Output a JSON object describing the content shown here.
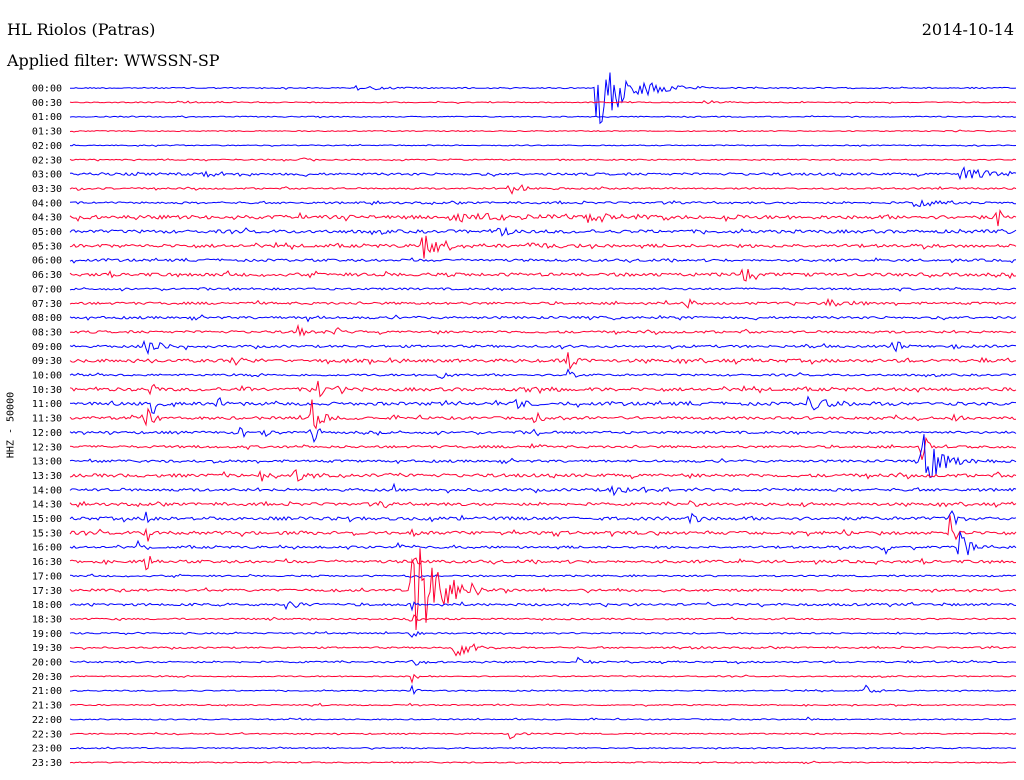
{
  "header": {
    "station": "HL Riolos (Patras)",
    "date": "2014-10-14",
    "filter": "Applied filter: WWSSN-SP"
  },
  "colors": {
    "blue": "#0000ff",
    "red": "#ff0033"
  },
  "chart_data": {
    "type": "line",
    "title": "HL Riolos (Patras)",
    "date": "2014-10-14",
    "filter": "WWSSN-SP",
    "ylabel": "HHZ - 50000",
    "row_labels": [
      "00:00",
      "00:30",
      "01:00",
      "01:30",
      "02:00",
      "02:30",
      "03:00",
      "03:30",
      "04:00",
      "04:30",
      "05:00",
      "05:30",
      "06:00",
      "06:30",
      "07:00",
      "07:30",
      "08:00",
      "08:30",
      "09:00",
      "09:30",
      "10:00",
      "10:30",
      "11:00",
      "11:30",
      "12:00",
      "12:30",
      "13:00",
      "13:30",
      "14:00",
      "14:30",
      "15:00",
      "15:30",
      "16:00",
      "16:30",
      "17:00",
      "17:30",
      "18:00",
      "18:30",
      "19:00",
      "19:30",
      "20:00",
      "20:30",
      "21:00",
      "21:30",
      "22:00",
      "22:30",
      "23:00",
      "23:30"
    ],
    "row_colors": [
      "blue",
      "red"
    ],
    "rows": [
      {
        "noise": 0.6,
        "events": [
          {
            "x": 0.3,
            "amp": 3,
            "dur": 0.03
          },
          {
            "x": 0.555,
            "amp": 45,
            "dur": 0.03
          }
        ]
      },
      {
        "noise": 0.5,
        "events": [
          {
            "x": 0.11,
            "amp": 2,
            "dur": 0.02
          },
          {
            "x": 0.67,
            "amp": 2,
            "dur": 0.02
          }
        ]
      },
      {
        "noise": 0.5,
        "events": []
      },
      {
        "noise": 0.5,
        "events": []
      },
      {
        "noise": 0.5,
        "events": []
      },
      {
        "noise": 0.6,
        "events": [
          {
            "x": 0.245,
            "amp": 2,
            "dur": 0.01
          }
        ]
      },
      {
        "noise": 1.2,
        "events": [
          {
            "x": 0.14,
            "amp": 7,
            "dur": 0.015
          },
          {
            "x": 0.94,
            "amp": 8,
            "dur": 0.04
          }
        ]
      },
      {
        "noise": 0.8,
        "events": [
          {
            "x": 0.003,
            "amp": 4,
            "dur": 0.01
          },
          {
            "x": 0.465,
            "amp": 13,
            "dur": 0.015
          }
        ]
      },
      {
        "noise": 1.0,
        "events": [
          {
            "x": 0.89,
            "amp": 6,
            "dur": 0.02
          }
        ]
      },
      {
        "noise": 1.8,
        "events": [
          {
            "x": 0.4,
            "amp": 6,
            "dur": 0.05
          },
          {
            "x": 0.545,
            "amp": 6,
            "dur": 0.03
          },
          {
            "x": 0.69,
            "amp": 6,
            "dur": 0.01
          },
          {
            "x": 0.98,
            "amp": 16,
            "dur": 0.005
          }
        ]
      },
      {
        "noise": 1.6,
        "events": [
          {
            "x": 0.45,
            "amp": 6,
            "dur": 0.015
          },
          {
            "x": 0.98,
            "amp": 7,
            "dur": 0.005
          }
        ]
      },
      {
        "noise": 1.6,
        "events": [
          {
            "x": 0.37,
            "amp": 20,
            "dur": 0.02
          },
          {
            "x": 0.48,
            "amp": 3,
            "dur": 0.03
          }
        ]
      },
      {
        "noise": 1.2,
        "events": []
      },
      {
        "noise": 1.6,
        "events": [
          {
            "x": 0.71,
            "amp": 9,
            "dur": 0.02
          }
        ]
      },
      {
        "noise": 1.0,
        "events": []
      },
      {
        "noise": 1.2,
        "events": [
          {
            "x": 0.65,
            "amp": 7,
            "dur": 0.008
          },
          {
            "x": 0.8,
            "amp": 8,
            "dur": 0.015
          }
        ]
      },
      {
        "noise": 1.2,
        "events": [
          {
            "x": 0.25,
            "amp": 5,
            "dur": 0.008
          }
        ]
      },
      {
        "noise": 1.2,
        "events": [
          {
            "x": 0.24,
            "amp": 6,
            "dur": 0.01
          },
          {
            "x": 0.28,
            "amp": 5,
            "dur": 0.01
          }
        ]
      },
      {
        "noise": 1.2,
        "events": [
          {
            "x": 0.08,
            "amp": 9,
            "dur": 0.02
          },
          {
            "x": 0.87,
            "amp": 14,
            "dur": 0.005
          },
          {
            "x": 0.935,
            "amp": 5,
            "dur": 0.01
          }
        ]
      },
      {
        "noise": 1.6,
        "events": [
          {
            "x": 0.165,
            "amp": 5,
            "dur": 0.02
          },
          {
            "x": 0.525,
            "amp": 14,
            "dur": 0.01
          }
        ]
      },
      {
        "noise": 1.0,
        "events": [
          {
            "x": 0.39,
            "amp": 6,
            "dur": 0.01
          },
          {
            "x": 0.525,
            "amp": 10,
            "dur": 0.005
          }
        ]
      },
      {
        "noise": 1.6,
        "events": [
          {
            "x": 0.085,
            "amp": 20,
            "dur": 0.005
          },
          {
            "x": 0.18,
            "amp": 6,
            "dur": 0.01
          },
          {
            "x": 0.26,
            "amp": 10,
            "dur": 0.02
          },
          {
            "x": 0.47,
            "amp": 5,
            "dur": 0.03
          }
        ]
      },
      {
        "noise": 1.6,
        "events": [
          {
            "x": 0.085,
            "amp": 30,
            "dur": 0.005
          },
          {
            "x": 0.155,
            "amp": 8,
            "dur": 0.01
          },
          {
            "x": 0.47,
            "amp": 8,
            "dur": 0.015
          },
          {
            "x": 0.78,
            "amp": 6,
            "dur": 0.04
          }
        ]
      },
      {
        "noise": 1.4,
        "events": [
          {
            "x": 0.08,
            "amp": 14,
            "dur": 0.01
          },
          {
            "x": 0.255,
            "amp": 22,
            "dur": 0.01
          },
          {
            "x": 0.49,
            "amp": 6,
            "dur": 0.015
          },
          {
            "x": 0.93,
            "amp": 5,
            "dur": 0.01
          }
        ]
      },
      {
        "noise": 1.2,
        "events": [
          {
            "x": 0.175,
            "amp": 5,
            "dur": 0.02
          },
          {
            "x": 0.205,
            "amp": 7,
            "dur": 0.005
          },
          {
            "x": 0.255,
            "amp": 18,
            "dur": 0.005
          },
          {
            "x": 0.49,
            "amp": 6,
            "dur": 0.01
          }
        ]
      },
      {
        "noise": 1.2,
        "events": [
          {
            "x": 0.485,
            "amp": 6,
            "dur": 0.01
          },
          {
            "x": 0.9,
            "amp": 22,
            "dur": 0.005
          }
        ]
      },
      {
        "noise": 1.2,
        "events": [
          {
            "x": 0.9,
            "amp": 30,
            "dur": 0.02
          }
        ]
      },
      {
        "noise": 1.6,
        "events": [
          {
            "x": 0.2,
            "amp": 14,
            "dur": 0.003
          },
          {
            "x": 0.235,
            "amp": 6,
            "dur": 0.03
          },
          {
            "x": 0.34,
            "amp": 10,
            "dur": 0.005
          }
        ]
      },
      {
        "noise": 1.4,
        "events": [
          {
            "x": 0.34,
            "amp": 5,
            "dur": 0.005
          },
          {
            "x": 0.57,
            "amp": 5,
            "dur": 0.04
          }
        ]
      },
      {
        "noise": 1.4,
        "events": [
          {
            "x": 0.33,
            "amp": 5,
            "dur": 0.005
          },
          {
            "x": 0.655,
            "amp": 8,
            "dur": 0.005
          },
          {
            "x": 0.77,
            "amp": 5,
            "dur": 0.005
          }
        ]
      },
      {
        "noise": 1.6,
        "events": [
          {
            "x": 0.08,
            "amp": 14,
            "dur": 0.005
          },
          {
            "x": 0.655,
            "amp": 22,
            "dur": 0.005
          },
          {
            "x": 0.93,
            "amp": 10,
            "dur": 0.01
          }
        ]
      },
      {
        "noise": 1.6,
        "events": [
          {
            "x": 0.08,
            "amp": 14,
            "dur": 0.005
          },
          {
            "x": 0.36,
            "amp": 6,
            "dur": 0.005
          },
          {
            "x": 0.93,
            "amp": 25,
            "dur": 0.005
          }
        ]
      },
      {
        "noise": 1.2,
        "events": [
          {
            "x": 0.07,
            "amp": 8,
            "dur": 0.005
          },
          {
            "x": 0.22,
            "amp": 5,
            "dur": 0.005
          },
          {
            "x": 0.285,
            "amp": 7,
            "dur": 0.005
          },
          {
            "x": 0.345,
            "amp": 6,
            "dur": 0.005
          },
          {
            "x": 0.86,
            "amp": 14,
            "dur": 0.005
          },
          {
            "x": 0.94,
            "amp": 20,
            "dur": 0.01
          }
        ]
      },
      {
        "noise": 1.4,
        "events": [
          {
            "x": 0.08,
            "amp": 12,
            "dur": 0.005
          },
          {
            "x": 0.36,
            "amp": 14,
            "dur": 0.005
          }
        ]
      },
      {
        "noise": 0.8,
        "events": [
          {
            "x": 0.36,
            "amp": 4,
            "dur": 0.005
          }
        ]
      },
      {
        "noise": 1.2,
        "events": [
          {
            "x": 0.36,
            "amp": 60,
            "dur": 0.03
          }
        ]
      },
      {
        "noise": 1.2,
        "events": [
          {
            "x": 0.225,
            "amp": 6,
            "dur": 0.015
          },
          {
            "x": 0.36,
            "amp": 10,
            "dur": 0.005
          }
        ]
      },
      {
        "noise": 0.8,
        "events": [
          {
            "x": 0.36,
            "amp": 10,
            "dur": 0.005
          }
        ]
      },
      {
        "noise": 0.8,
        "events": [
          {
            "x": 0.36,
            "amp": 10,
            "dur": 0.005
          }
        ]
      },
      {
        "noise": 0.8,
        "events": [
          {
            "x": 0.405,
            "amp": 14,
            "dur": 0.015
          },
          {
            "x": 0.64,
            "amp": 3,
            "dur": 0.01
          }
        ]
      },
      {
        "noise": 0.8,
        "events": [
          {
            "x": 0.36,
            "amp": 10,
            "dur": 0.005
          },
          {
            "x": 0.535,
            "amp": 6,
            "dur": 0.01
          }
        ]
      },
      {
        "noise": 0.6,
        "events": [
          {
            "x": 0.36,
            "amp": 10,
            "dur": 0.005
          }
        ]
      },
      {
        "noise": 0.6,
        "events": [
          {
            "x": 0.36,
            "amp": 10,
            "dur": 0.005
          },
          {
            "x": 0.84,
            "amp": 6,
            "dur": 0.01
          }
        ]
      },
      {
        "noise": 0.6,
        "events": [
          {
            "x": 0.265,
            "amp": 3,
            "dur": 0.005
          },
          {
            "x": 0.36,
            "amp": 8,
            "dur": 0.005
          }
        ]
      },
      {
        "noise": 0.6,
        "events": [
          {
            "x": 0.78,
            "amp": 2,
            "dur": 0.01
          }
        ]
      },
      {
        "noise": 0.6,
        "events": [
          {
            "x": 0.465,
            "amp": 7,
            "dur": 0.008
          }
        ]
      },
      {
        "noise": 0.6,
        "events": [
          {
            "x": 0.215,
            "amp": 2,
            "dur": 0.01
          }
        ]
      },
      {
        "noise": 0.6,
        "events": []
      }
    ]
  }
}
